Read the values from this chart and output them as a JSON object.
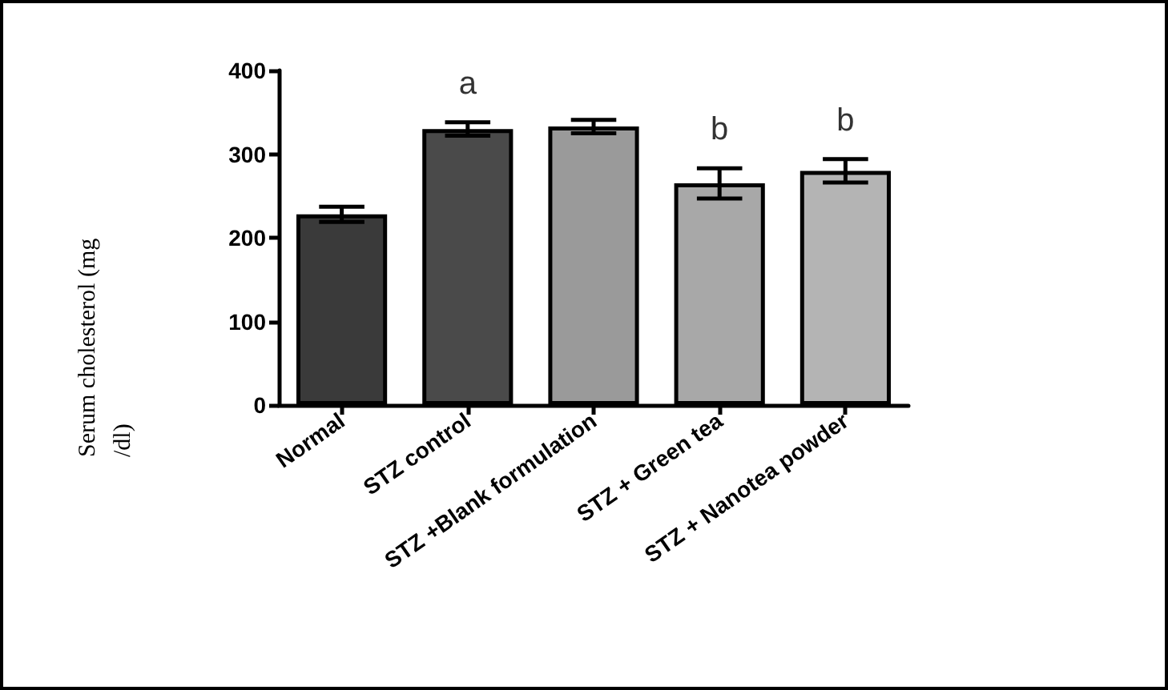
{
  "chart_data": {
    "type": "bar",
    "ylabel": "Serum cholesterol (mg/dl)",
    "categories": [
      "Normal",
      "STZ control",
      "STZ +Blank formulation",
      "STZ + Green tea",
      "STZ + Nanotea powder"
    ],
    "values": [
      228,
      330,
      333,
      265,
      280
    ],
    "errors": [
      9,
      8,
      8,
      18,
      14
    ],
    "colors": [
      "#3a3a3a",
      "#4a4a4a",
      "#9a9a9a",
      "#a8a8a8",
      "#b4b4b4"
    ],
    "ylim": [
      0,
      400
    ],
    "yticks": [
      0,
      100,
      200,
      300,
      400
    ],
    "grid": false,
    "annotations": [
      {
        "text": "a",
        "x": "STZ control",
        "y": 338
      },
      {
        "text": "b",
        "x": "STZ + Green tea",
        "y": 283
      },
      {
        "text": "b",
        "x": "STZ + Nanotea powder",
        "y": 294
      }
    ]
  }
}
